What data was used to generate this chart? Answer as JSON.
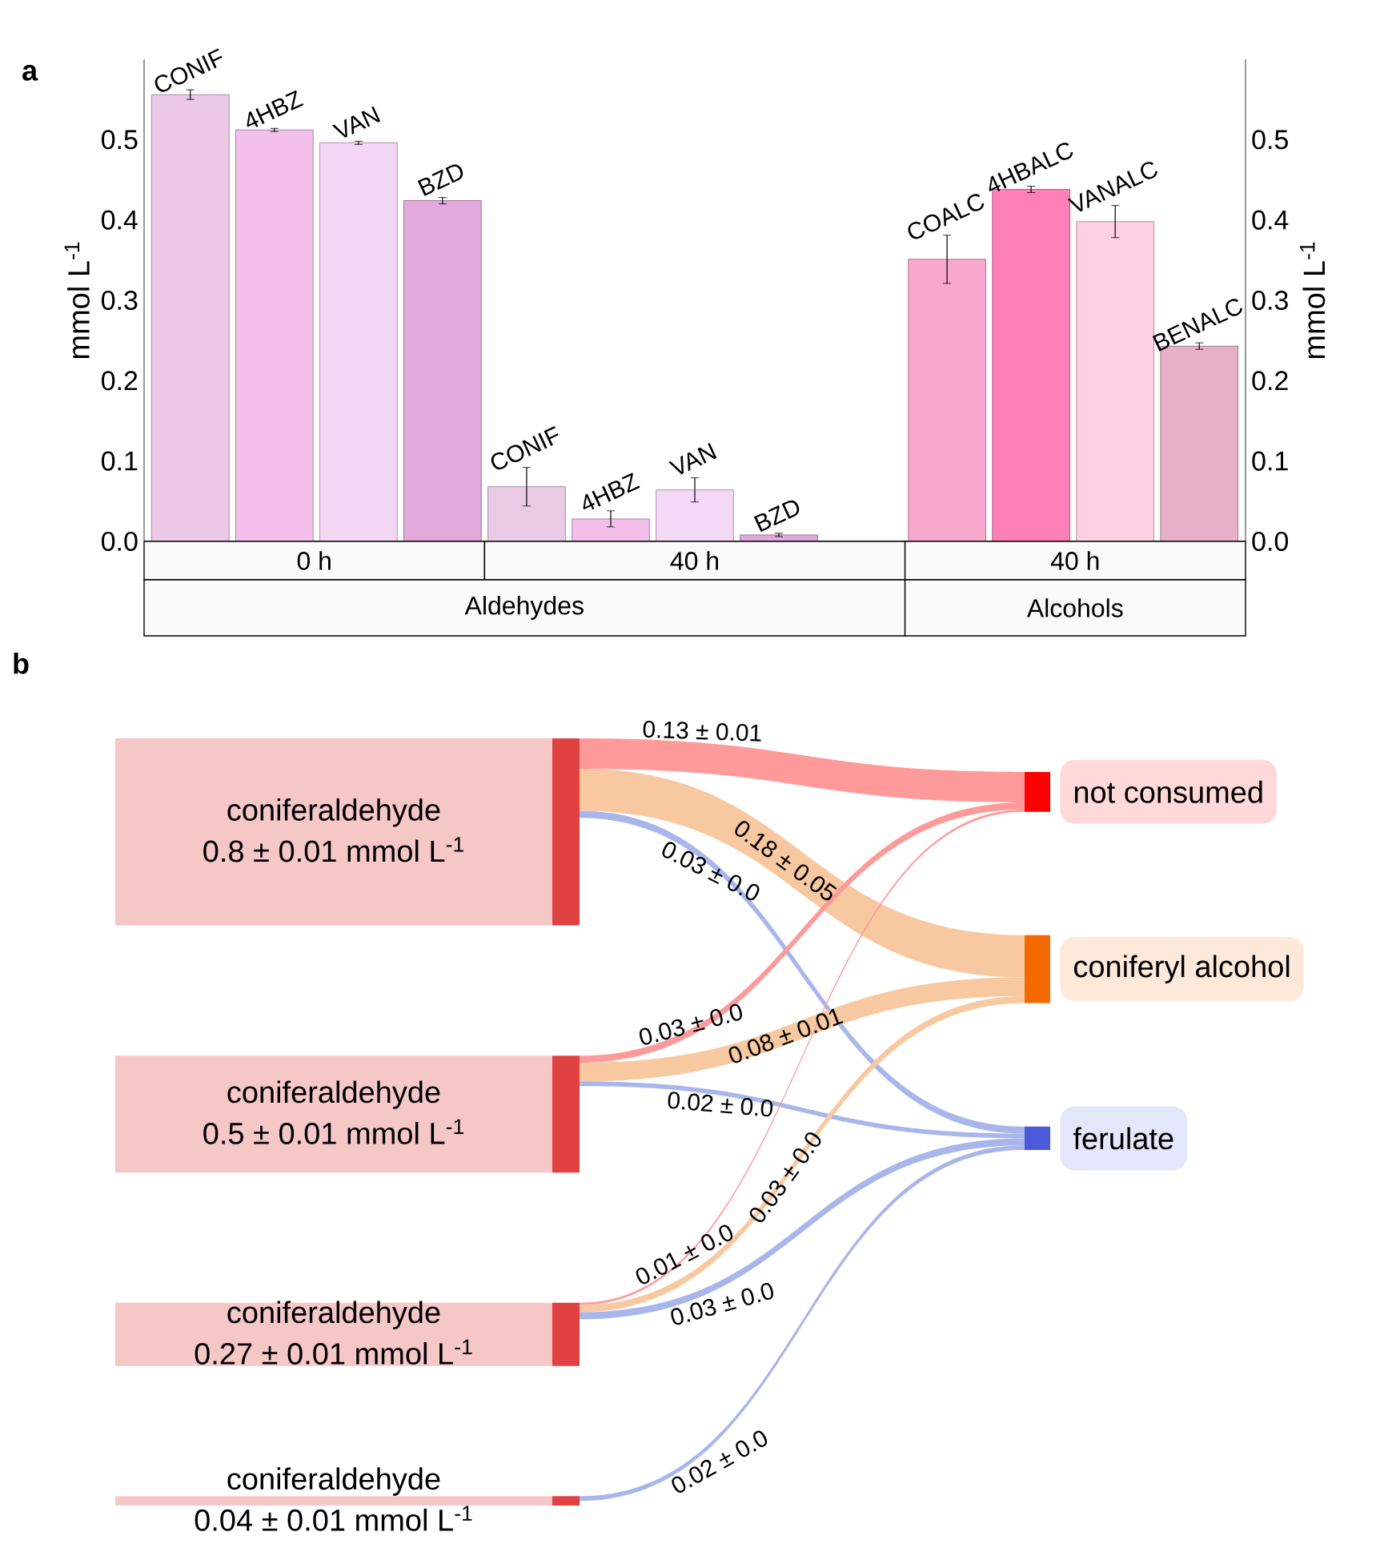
{
  "chart_data": [
    {
      "type": "bar",
      "title": "a",
      "categories": [
        "CONIF",
        "4HBZ",
        "VAN",
        "BZD",
        "CONIF",
        "4HBZ",
        "VAN",
        "BZD",
        null,
        "COALC",
        "4HBALC",
        "VANALC",
        "BENALC"
      ],
      "values": [
        0.556,
        0.512,
        0.496,
        0.424,
        0.068,
        0.028,
        0.064,
        0.008,
        null,
        0.351,
        0.438,
        0.398,
        0.243
      ],
      "errors": [
        0.006,
        0.002,
        0.002,
        0.004,
        0.024,
        0.01,
        0.015,
        0.002,
        null,
        0.03,
        0.004,
        0.02,
        0.004
      ],
      "colors": [
        "#ecc8e6",
        "#f2c0ea",
        "#f2d6f4",
        "#e2aadc",
        "#eacbe6",
        "#f2bfea",
        "#f3d9f5",
        "#e2aadc",
        "#ffffff",
        "#f8a8cc",
        "#ff80b6",
        "#ffd0e4",
        "#e8afc8"
      ],
      "ylim": [
        0,
        0.6
      ],
      "yticks": [
        {
          "value": 0,
          "label": "0.0"
        },
        0.1,
        0.2,
        0.3,
        0.4,
        0.5
      ],
      "y2lim": [
        0,
        0.6
      ],
      "y2ticks": [
        {
          "value": 0,
          "label": "0.0"
        },
        0.1,
        0.2,
        0.3,
        0.4,
        0.5
      ],
      "ylabel": "mmol L$^{-1}$",
      "y2label": "mmol L$^{-1}$",
      "annotations": [
        "0 h",
        "40 h",
        "40 h",
        "Aldehydes",
        "Alcohols"
      ]
    },
    {
      "type": "other",
      "title": "b",
      "categories": [
        "coniferaldehyde",
        "coniferaldehyde",
        "coniferaldehyde",
        "coniferaldehyde"
      ],
      "values": [
        0.8,
        0.5,
        0.27,
        0.04
      ],
      "value_labels": [
        "0.8 ± 0.01 mmol L$^{-1}$",
        "0.5 ± 0.01 mmol L$^{-1}$",
        "0.27 ± 0.01 mmol L$^{-1}$",
        "0.04 ± 0.01 mmol L$^{-1}$"
      ],
      "color": "#f6c7c7",
      "series": [
        {
          "name": "not consumed",
          "color": "#ff0000",
          "colors": [
            "#ff9a9a",
            "#ff9a9a",
            "#ff9a9a",
            null
          ],
          "values": [
            0.13,
            0.03,
            0.01,
            null
          ],
          "value_labels": [
            "0.13 ± 0.01",
            "0.03 ± 0.0",
            "0.01 ± 0.0",
            null
          ]
        },
        {
          "name": "coniferyl alcohol",
          "color": "#f46a00",
          "colors": [
            "#f8c8a0",
            "#f8c8a0",
            "#f8c8a0",
            null
          ],
          "values": [
            0.18,
            0.08,
            0.03,
            null
          ],
          "value_labels": [
            "0.18 ± 0.05",
            "0.08 ± 0.01",
            "0.03 ± 0.0",
            null
          ]
        },
        {
          "name": "ferulate",
          "color": "#4a5ad8",
          "colors": [
            "#a9b6ec",
            "#a9b6ec",
            "#a9b6ec",
            "#a9b6ec"
          ],
          "values": [
            0.03,
            0.02,
            0.03,
            0.02
          ],
          "value_labels": [
            "0.03 ± 0.0",
            "0.02 ± 0.0",
            "0.03 ± 0.0",
            "0.02 ± 0.0"
          ]
        }
      ]
    }
  ]
}
